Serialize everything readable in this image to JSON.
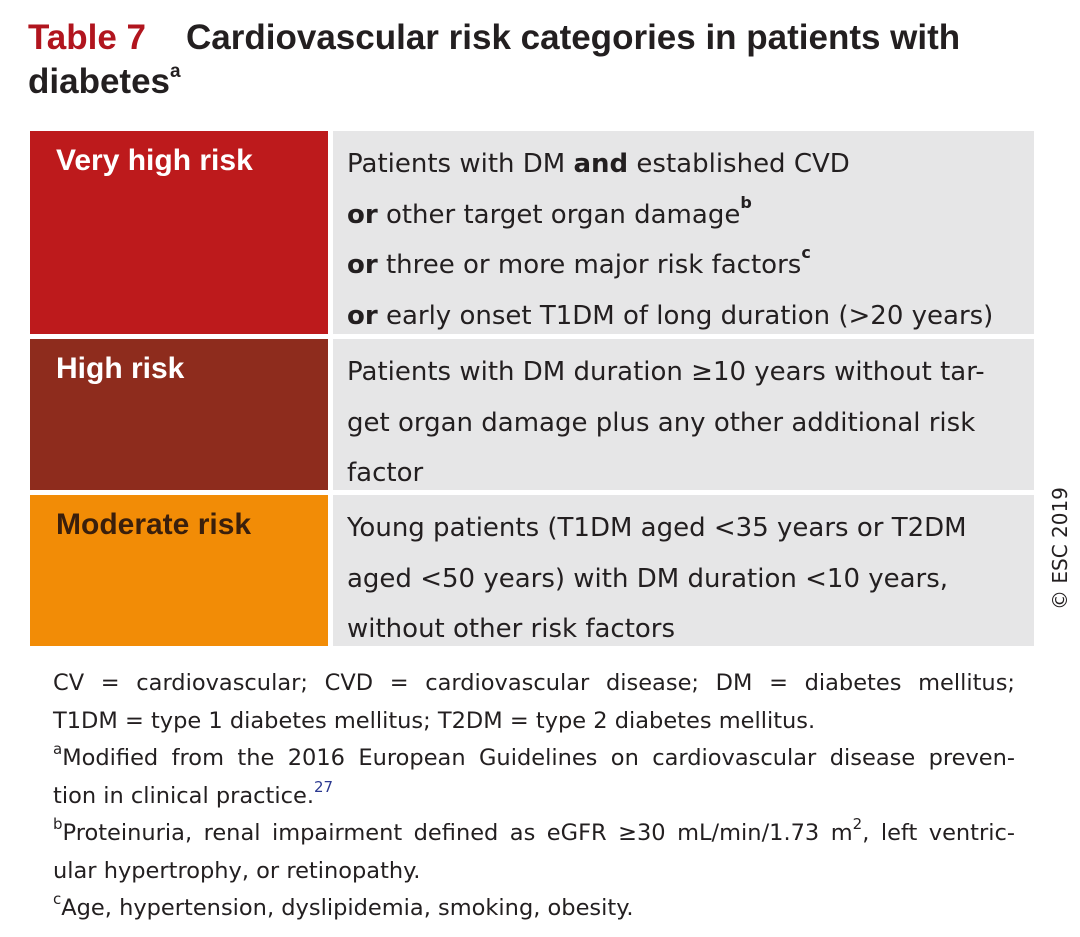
{
  "title": {
    "label": "Table 7",
    "text": "Cardiovascular risk categories in patients with diabetes",
    "footnote_mark": "a"
  },
  "table": {
    "rows": [
      {
        "category": "Very high risk",
        "color": "#bd1a1c",
        "lines": [
          {
            "pre": "Patients with DM ",
            "bold": "and",
            "post": " established CVD",
            "sup": ""
          },
          {
            "pre": "",
            "bold": "or",
            "post": " other target organ damage",
            "sup": "b"
          },
          {
            "pre": "",
            "bold": "or",
            "post": " three or more major risk factors",
            "sup": "c"
          },
          {
            "pre": "",
            "bold": "or",
            "post": " early onset T1DM of long duration (>20 years)",
            "sup": ""
          }
        ]
      },
      {
        "category": "High risk",
        "color": "#8e2c1d",
        "lines": [
          "Patients with DM duration ≥10 years without tar-",
          "get organ damage plus any other additional risk",
          "factor"
        ]
      },
      {
        "category": "Moderate risk",
        "color": "#f28c06",
        "lines": [
          "Young patients (T1DM aged <35 years or T2DM",
          "aged <50 years) with DM duration <10 years,",
          "without other risk factors"
        ]
      }
    ]
  },
  "copyright": "© ESC 2019",
  "footnotes": {
    "abbreviations": [
      "CV = cardiovascular; CVD = cardiovascular disease; DM = diabetes mellitus;",
      "T1DM = type 1 diabetes mellitus; T2DM = type 2 diabetes mellitus."
    ],
    "a": {
      "mark": "a",
      "line1": "Modified from the 2016 European Guidelines on cardiovascular disease preven-",
      "line2": "tion in clinical practice.",
      "ref": "27"
    },
    "b": {
      "mark": "b",
      "line1_pre": "Proteinuria, renal impairment defined as eGFR ≥30 mL/min/1.73 m",
      "line1_sup": "2",
      "line1_post": ", left ventric-",
      "line2": "ular hypertrophy, or retinopathy."
    },
    "c": {
      "mark": "c",
      "text": "Age, hypertension, dyslipidemia, smoking, obesity."
    }
  }
}
